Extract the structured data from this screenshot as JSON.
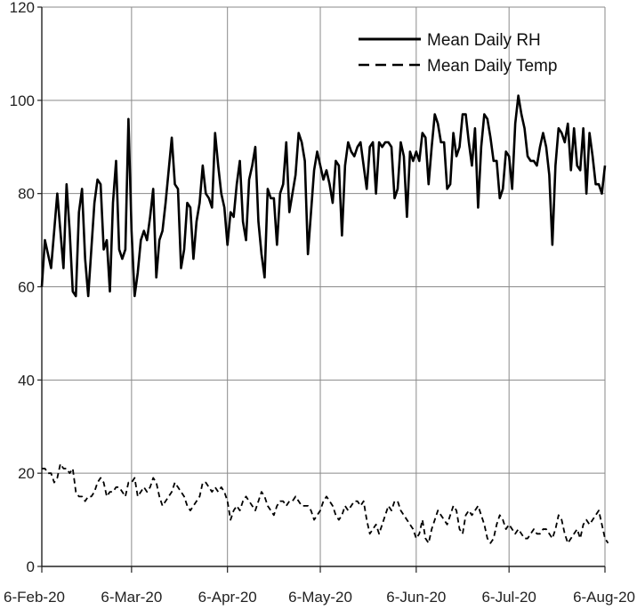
{
  "chart_data": {
    "type": "line",
    "title": "",
    "xlabel": "",
    "ylabel": "",
    "ylim": [
      0,
      120
    ],
    "yticks": [
      0,
      20,
      40,
      60,
      80,
      100,
      120
    ],
    "xticks": [
      "6-Feb-20",
      "6-Mar-20",
      "6-Apr-20",
      "6-May-20",
      "6-Jun-20",
      "6-Jul-20",
      "6-Aug-20"
    ],
    "xlim": [
      "2020-02-06",
      "2020-08-06"
    ],
    "grid": true,
    "legend_position": "top-right",
    "line_color": "#000000",
    "series": [
      {
        "name": "Mean Daily RH",
        "style": "solid",
        "start": "2020-02-06",
        "values": [
          60,
          70,
          67,
          64,
          72,
          80,
          72,
          64,
          82,
          72,
          59,
          58,
          76,
          81,
          66,
          58,
          68,
          78,
          83,
          82,
          68,
          70,
          59,
          78,
          87,
          68,
          66,
          68,
          96,
          72,
          58,
          63,
          70,
          72,
          70,
          75,
          81,
          62,
          70,
          72,
          78,
          85,
          92,
          82,
          81,
          64,
          68,
          78,
          77,
          66,
          74,
          78,
          86,
          80,
          79,
          77,
          93,
          86,
          80,
          77,
          69,
          76,
          75,
          82,
          87,
          74,
          70,
          83,
          86,
          90,
          74,
          67,
          62,
          81,
          79,
          79,
          69,
          80,
          82,
          91,
          76,
          80,
          84,
          93,
          91,
          87,
          67,
          76,
          85,
          89,
          86,
          83,
          85,
          82,
          78,
          87,
          86,
          71,
          86,
          91,
          89,
          88,
          90,
          91,
          86,
          81,
          90,
          91,
          80,
          91,
          90,
          91,
          91,
          90,
          79,
          81,
          91,
          88,
          75,
          89,
          87,
          89,
          87,
          93,
          92,
          82,
          90,
          97,
          95,
          91,
          91,
          81,
          82,
          93,
          88,
          90,
          97,
          97,
          91,
          86,
          94,
          77,
          90,
          97,
          96,
          92,
          87,
          87,
          79,
          81,
          89,
          88,
          81,
          95,
          101,
          97,
          94,
          88,
          87,
          87,
          86,
          90,
          93,
          90,
          84,
          69,
          86,
          94,
          93,
          91,
          95,
          85,
          94,
          86,
          85,
          94,
          80,
          93,
          88,
          82,
          82,
          80,
          86
        ]
      },
      {
        "name": "Mean Daily Temp",
        "style": "dashed",
        "start": "2020-02-06",
        "values": [
          21,
          21,
          20,
          20,
          18,
          19,
          22,
          21,
          21,
          20,
          21,
          16,
          15,
          15,
          14,
          15,
          15,
          16,
          18,
          19,
          18,
          15,
          16,
          16,
          17,
          17,
          16,
          15,
          18,
          18,
          19,
          15,
          16,
          17,
          16,
          17,
          19,
          18,
          15,
          13,
          14,
          15,
          16,
          18,
          17,
          16,
          15,
          13,
          12,
          13,
          14,
          15,
          18,
          18,
          17,
          16,
          17,
          16,
          17,
          16,
          14,
          10,
          12,
          13,
          12,
          14,
          15,
          14,
          13,
          12,
          14,
          16,
          15,
          13,
          12,
          11,
          13,
          14,
          14,
          13,
          14,
          14,
          15,
          14,
          13,
          13,
          13,
          12,
          10,
          11,
          12,
          14,
          15,
          14,
          13,
          11,
          10,
          11,
          13,
          12,
          13,
          14,
          14,
          13,
          14,
          10,
          7,
          8,
          9,
          7,
          9,
          11,
          13,
          12,
          14,
          14,
          12,
          11,
          10,
          9,
          8,
          6,
          7,
          10,
          6,
          5,
          8,
          10,
          12,
          11,
          10,
          9,
          11,
          13,
          12,
          8,
          7,
          11,
          12,
          11,
          12,
          13,
          11,
          9,
          6,
          5,
          6,
          9,
          11,
          10,
          8,
          9,
          8,
          7,
          8,
          7,
          6,
          6,
          7,
          8,
          7,
          7,
          8,
          8,
          7,
          6,
          8,
          11,
          10,
          7,
          5,
          6,
          7,
          8,
          6,
          9,
          10,
          9,
          10,
          11,
          12,
          9,
          6,
          5
        ]
      }
    ]
  }
}
